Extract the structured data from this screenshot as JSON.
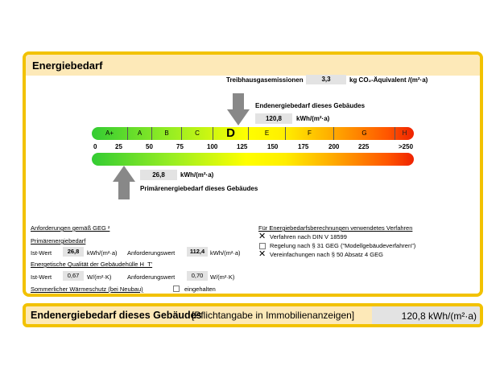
{
  "title": "Energiebedarf",
  "ghg": {
    "label": "Treibhausgasemissionen",
    "value": "3,3",
    "unit": "kg CO₂-Äquivalent /(m²·a)"
  },
  "end": {
    "label": "Endenergiebedarf dieses Gebäudes",
    "value": "120,8",
    "unit": "kWh/(m²·a)"
  },
  "primary": {
    "label": "Primärenergiebedarf dieses Gebäudes",
    "value": "26,8",
    "unit": "kWh/(m²·a)"
  },
  "classes": [
    "A+",
    "A",
    "B",
    "C",
    "D",
    "E",
    "F",
    "G",
    "H"
  ],
  "active_class": "D",
  "ticks": [
    "0",
    "25",
    "50",
    "75",
    "100",
    "125",
    "150",
    "175",
    "200",
    "225",
    ">250"
  ],
  "req": {
    "title": "Anforderungen gemäß GEG ²",
    "prim_title": "Primärenergiebedarf",
    "ist": "Ist-Wert",
    "ist_val": "26,8",
    "unit": "kWh/(m²·a)",
    "anf": "Anforderungswert",
    "anf_val": "112,4",
    "huelle_title": "Energetische Qualität der Gebäudehülle H_T'",
    "ist2_val": "0,67",
    "unit2": "W/(m²·K)",
    "anf2_val": "0,70",
    "sommer": "Sommerlicher Wärmeschutz (bei Neubau)",
    "eingehalten": "eingehalten",
    "eingehalten_checked": false
  },
  "method": {
    "title": "Für Energiebedarfsberechnungen verwendetes Verfahren",
    "items": [
      {
        "label": "Verfahren nach DIN V 18599",
        "checked": true
      },
      {
        "label": "Regelung nach § 31 GEG (\"Modellgebäudeverfahren\")",
        "checked": false
      },
      {
        "label": "Vereinfachungen nach § 50 Absatz 4 GEG",
        "checked": true
      }
    ]
  },
  "footer": {
    "label": "Endenergiebedarf dieses Gebäudes",
    "note": "[Pflichtangabe in Immobilienanzeigen]",
    "value": "120,8 kWh/(m²·a)"
  }
}
